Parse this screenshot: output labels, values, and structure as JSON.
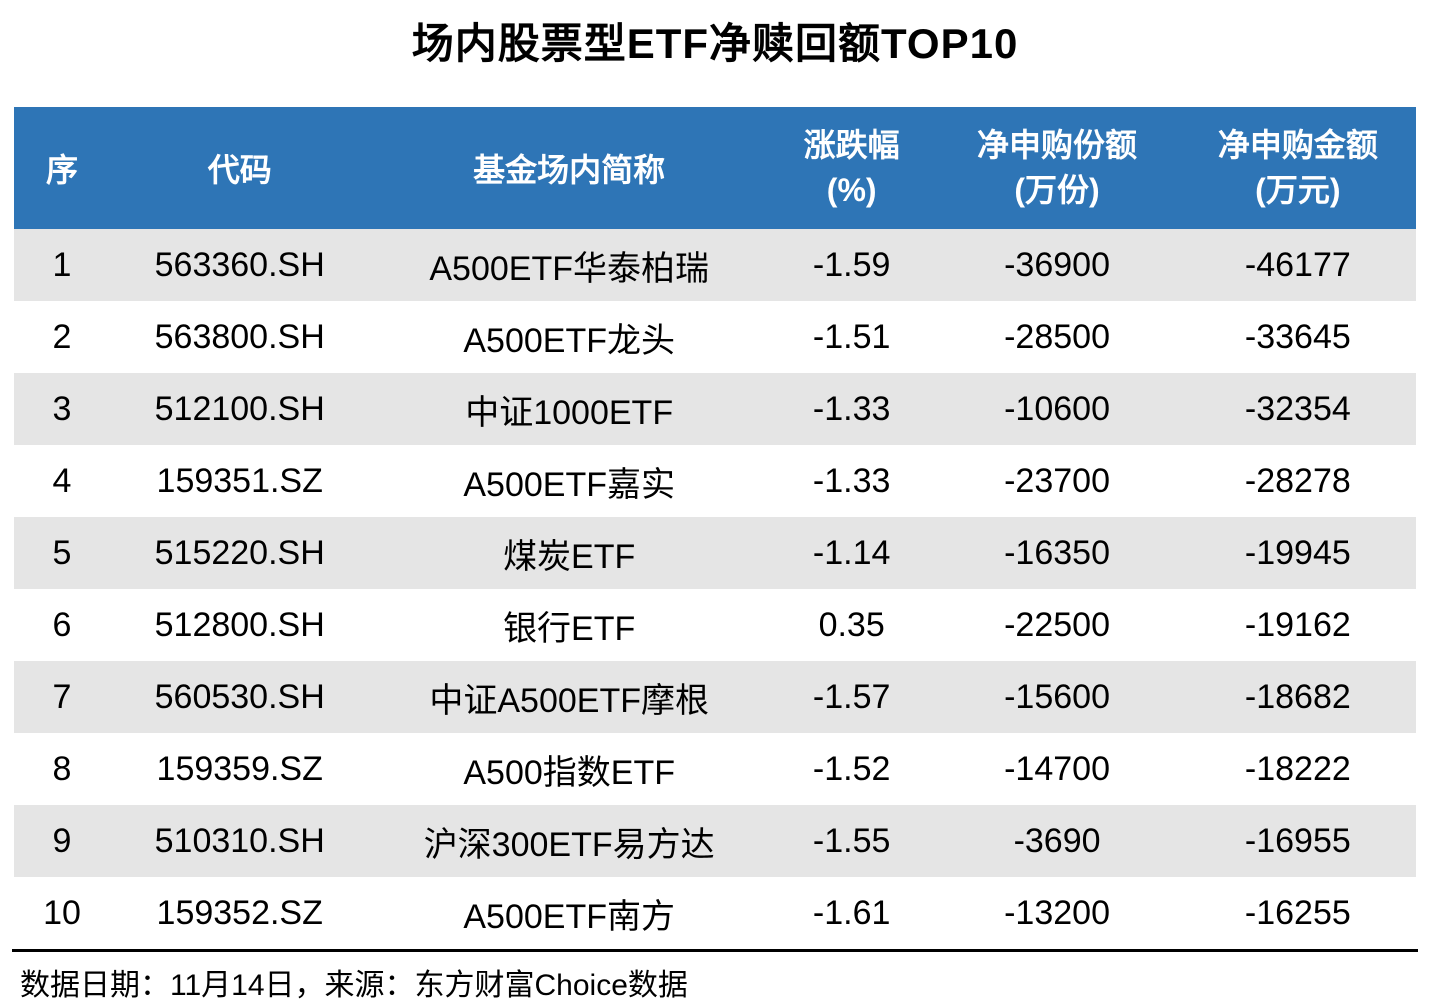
{
  "title": "场内股票型ETF净赎回额TOP10",
  "table": {
    "headers": {
      "seq": "序",
      "code": "代码",
      "name": "基金场内简称",
      "change": {
        "line1": "涨跌幅",
        "line2": "(%)"
      },
      "shares": {
        "line1": "净申购份额",
        "line2": "(万份)"
      },
      "amount": {
        "line1": "净申购金额",
        "line2": "(万元)"
      }
    }
  },
  "footer": {
    "note": "数据日期：11月14日，来源：东方财富Choice数据"
  },
  "colors": {
    "header_bg": "#2E75B6",
    "header_text": "#FFFFFF",
    "row_alt_bg": "#E5E5E5",
    "row_bg": "#FFFFFF",
    "text": "#000000"
  },
  "chart_data": {
    "type": "table",
    "title": "场内股票型ETF净赎回额TOP10",
    "columns": [
      "序",
      "代码",
      "基金场内简称",
      "涨跌幅(%)",
      "净申购份额(万份)",
      "净申购金额(万元)"
    ],
    "rows": [
      [
        "1",
        "563360.SH",
        "A500ETF华泰柏瑞",
        "-1.59",
        "-36900",
        "-46177"
      ],
      [
        "2",
        "563800.SH",
        "A500ETF龙头",
        "-1.51",
        "-28500",
        "-33645"
      ],
      [
        "3",
        "512100.SH",
        "中证1000ETF",
        "-1.33",
        "-10600",
        "-32354"
      ],
      [
        "4",
        "159351.SZ",
        "A500ETF嘉实",
        "-1.33",
        "-23700",
        "-28278"
      ],
      [
        "5",
        "515220.SH",
        "煤炭ETF",
        "-1.14",
        "-16350",
        "-19945"
      ],
      [
        "6",
        "512800.SH",
        "银行ETF",
        "0.35",
        "-22500",
        "-19162"
      ],
      [
        "7",
        "560530.SH",
        "中证A500ETF摩根",
        "-1.57",
        "-15600",
        "-18682"
      ],
      [
        "8",
        "159359.SZ",
        "A500指数ETF",
        "-1.52",
        "-14700",
        "-18222"
      ],
      [
        "9",
        "510310.SH",
        "沪深300ETF易方达",
        "-1.55",
        "-3690",
        "-16955"
      ],
      [
        "10",
        "159352.SZ",
        "A500ETF南方",
        "-1.61",
        "-13200",
        "-16255"
      ]
    ],
    "footnote": "数据日期：11月14日，来源：东方财富Choice数据"
  }
}
